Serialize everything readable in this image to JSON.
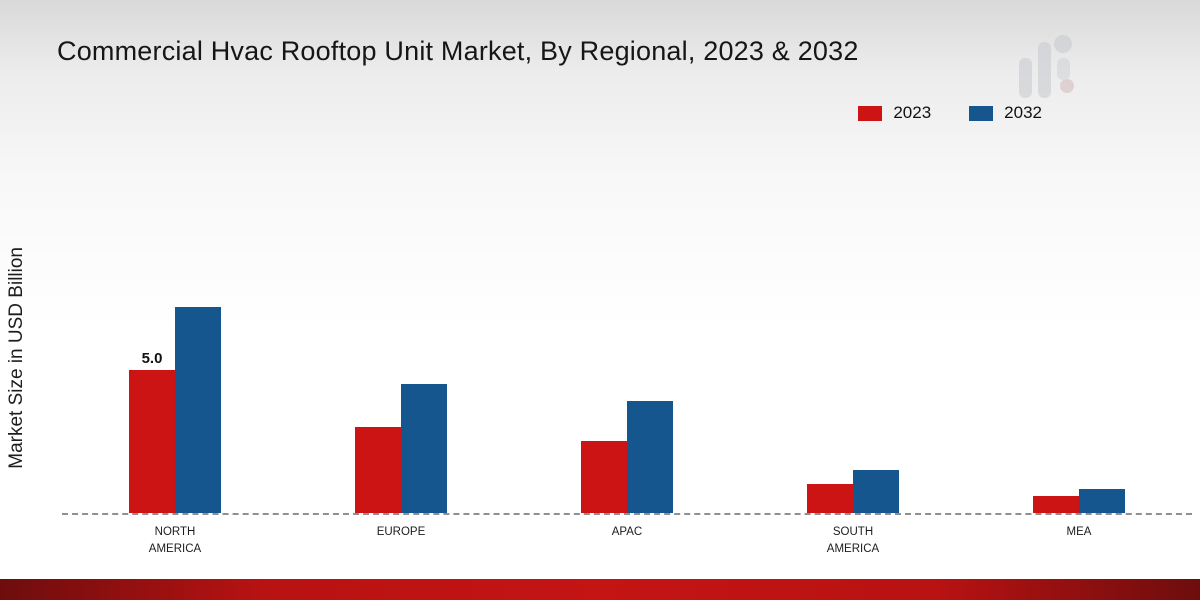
{
  "page": {
    "title": "Commercial Hvac Rooftop Unit Market, By Regional, 2023 & 2032",
    "ylabel": "Market Size in USD Billion"
  },
  "legend": {
    "items": [
      {
        "label": "2023",
        "color": "#cc1414"
      },
      {
        "label": "2032",
        "color": "#15568f"
      }
    ]
  },
  "footer": {
    "accent_color": "#b81212"
  },
  "chart_data": {
    "type": "bar",
    "title": "Commercial Hvac Rooftop Unit Market, By Regional, 2023 & 2032",
    "xlabel": "",
    "ylabel": "Market Size in USD Billion",
    "categories": [
      "NORTH AMERICA",
      "EUROPE",
      "APAC",
      "SOUTH AMERICA",
      "MEA"
    ],
    "series": [
      {
        "name": "2023",
        "color": "#cc1414",
        "values": [
          5.0,
          3.0,
          2.5,
          1.0,
          0.6
        ]
      },
      {
        "name": "2032",
        "color": "#15568f",
        "values": [
          7.2,
          4.5,
          3.9,
          1.5,
          0.85
        ]
      }
    ],
    "annotations": [
      {
        "category_index": 0,
        "series_index": 0,
        "text": "5.0"
      }
    ],
    "ylim": [
      0,
      8
    ],
    "grid": false,
    "baseline_style": "dashed",
    "legend_position": "top-right"
  }
}
